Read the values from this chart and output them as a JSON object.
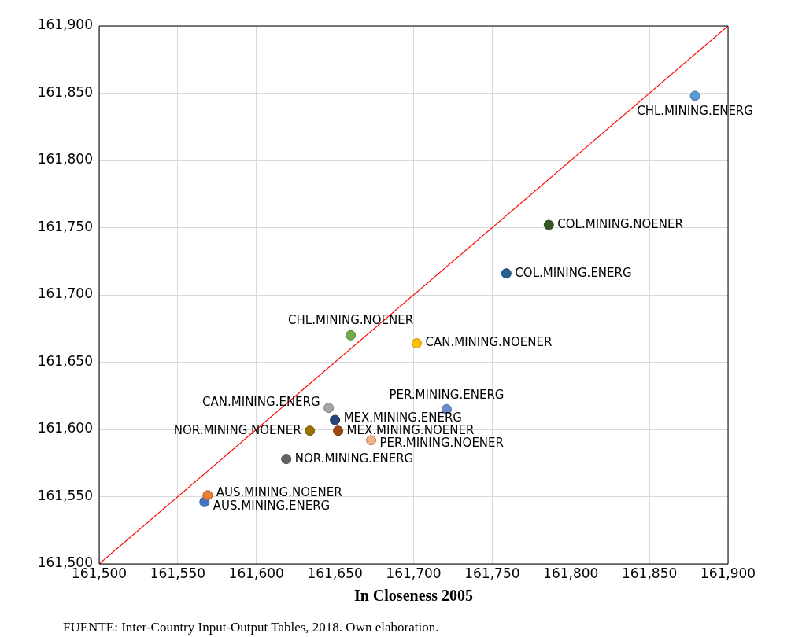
{
  "chart_data": {
    "type": "scatter",
    "xlabel": "In Closeness 2005",
    "xlim": [
      161500,
      161900
    ],
    "ylim": [
      161500,
      161900
    ],
    "xticks": [
      {
        "value": 161500,
        "label": "161,500"
      },
      {
        "value": 161550,
        "label": "161,550"
      },
      {
        "value": 161600,
        "label": "161,600"
      },
      {
        "value": 161650,
        "label": "161,650"
      },
      {
        "value": 161700,
        "label": "161,700"
      },
      {
        "value": 161750,
        "label": "161,750"
      },
      {
        "value": 161800,
        "label": "161,800"
      },
      {
        "value": 161850,
        "label": "161,850"
      },
      {
        "value": 161900,
        "label": "161,900"
      }
    ],
    "yticks": [
      {
        "value": 161500,
        "label": "161,500"
      },
      {
        "value": 161550,
        "label": "161,550"
      },
      {
        "value": 161600,
        "label": "161,600"
      },
      {
        "value": 161650,
        "label": "161,650"
      },
      {
        "value": 161700,
        "label": "161,700"
      },
      {
        "value": 161750,
        "label": "161,750"
      },
      {
        "value": 161800,
        "label": "161,800"
      },
      {
        "value": 161850,
        "label": "161,850"
      },
      {
        "value": 161900,
        "label": "161,900"
      }
    ],
    "grid": true,
    "marker": "circle",
    "annotations": [
      "FUENTE: Inter-Country Input-Output Tables, 2018. Own elaboration."
    ],
    "series": [
      {
        "type": "line",
        "color": "#ff0000",
        "x": [
          161500,
          161900
        ],
        "values": [
          161500,
          161900
        ],
        "marker": "none"
      },
      {
        "name": "CHL.MINING.ENERG",
        "color": "#5b9bd5",
        "x": [
          161879
        ],
        "values": [
          161848
        ]
      },
      {
        "name": "COL.MINING.NOENER",
        "color": "#375623",
        "x": [
          161786
        ],
        "values": [
          161752
        ]
      },
      {
        "name": "COL.MINING.ENERG",
        "color": "#255e91",
        "x": [
          161759
        ],
        "values": [
          161716
        ]
      },
      {
        "name": "CHL.MINING.NOENER",
        "color": "#70ad47",
        "x": [
          161660
        ],
        "values": [
          161670
        ]
      },
      {
        "name": "CAN.MINING.NOENER",
        "color": "#ffc000",
        "x": [
          161702
        ],
        "values": [
          161664
        ]
      },
      {
        "name": "PER.MINING.ENERG",
        "color": "#698ed0",
        "x": [
          161721
        ],
        "values": [
          161615
        ]
      },
      {
        "name": "CAN.MINING.ENERG",
        "color": "#a5a5a5",
        "x": [
          161646
        ],
        "values": [
          161616
        ]
      },
      {
        "name": "MEX.MINING.ENERG",
        "color": "#264478",
        "x": [
          161650
        ],
        "values": [
          161607
        ]
      },
      {
        "name": "NOR.MINING.NOENER",
        "color": "#997300",
        "x": [
          161634
        ],
        "values": [
          161599
        ]
      },
      {
        "name": "MEX.MINING.NOENER",
        "color": "#9e480e",
        "x": [
          161652
        ],
        "values": [
          161599
        ]
      },
      {
        "name": "PER.MINING.NOENER",
        "color": "#f4b183",
        "x": [
          161673
        ],
        "values": [
          161592
        ]
      },
      {
        "name": "NOR.MINING.ENERG",
        "color": "#636363",
        "x": [
          161619
        ],
        "values": [
          161578
        ]
      },
      {
        "name": "AUS.MINING.NOENER",
        "color": "#ed7d31",
        "x": [
          161569
        ],
        "values": [
          161551
        ]
      },
      {
        "name": "AUS.MINING.ENERG",
        "color": "#4472c4",
        "x": [
          161567
        ],
        "values": [
          161546
        ]
      }
    ]
  }
}
